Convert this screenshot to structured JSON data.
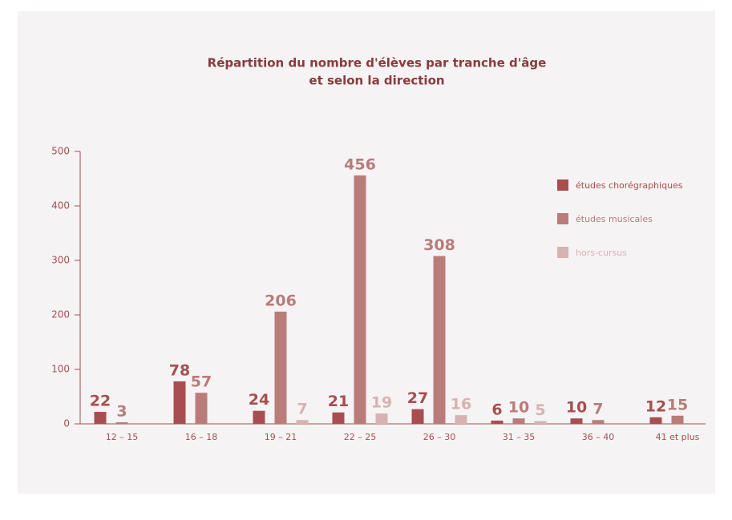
{
  "chart_data": {
    "type": "bar",
    "title": [
      "Répartition du nombre d'élèves par tranche d'âge",
      "et selon la direction"
    ],
    "categories": [
      "12 – 15",
      "16 – 18",
      "19 – 21",
      "22 – 25",
      "26 – 30",
      "31 – 35",
      "36 – 40",
      "41 et plus"
    ],
    "series": [
      {
        "name": "études chorégraphiques",
        "color": "#a84e50",
        "values": [
          22,
          78,
          24,
          21,
          27,
          6,
          10,
          12
        ]
      },
      {
        "name": "études musicales",
        "color": "#b97c7a",
        "values": [
          3,
          57,
          206,
          456,
          308,
          10,
          7,
          15
        ]
      },
      {
        "name": "hors-cursus",
        "color": "#d8b2b0",
        "values": [
          null,
          null,
          7,
          19,
          16,
          5,
          null,
          null
        ]
      }
    ],
    "ylim": [
      0,
      500
    ],
    "yticks": [
      0,
      100,
      200,
      300,
      400,
      500
    ],
    "grid": false,
    "legend": "right"
  }
}
